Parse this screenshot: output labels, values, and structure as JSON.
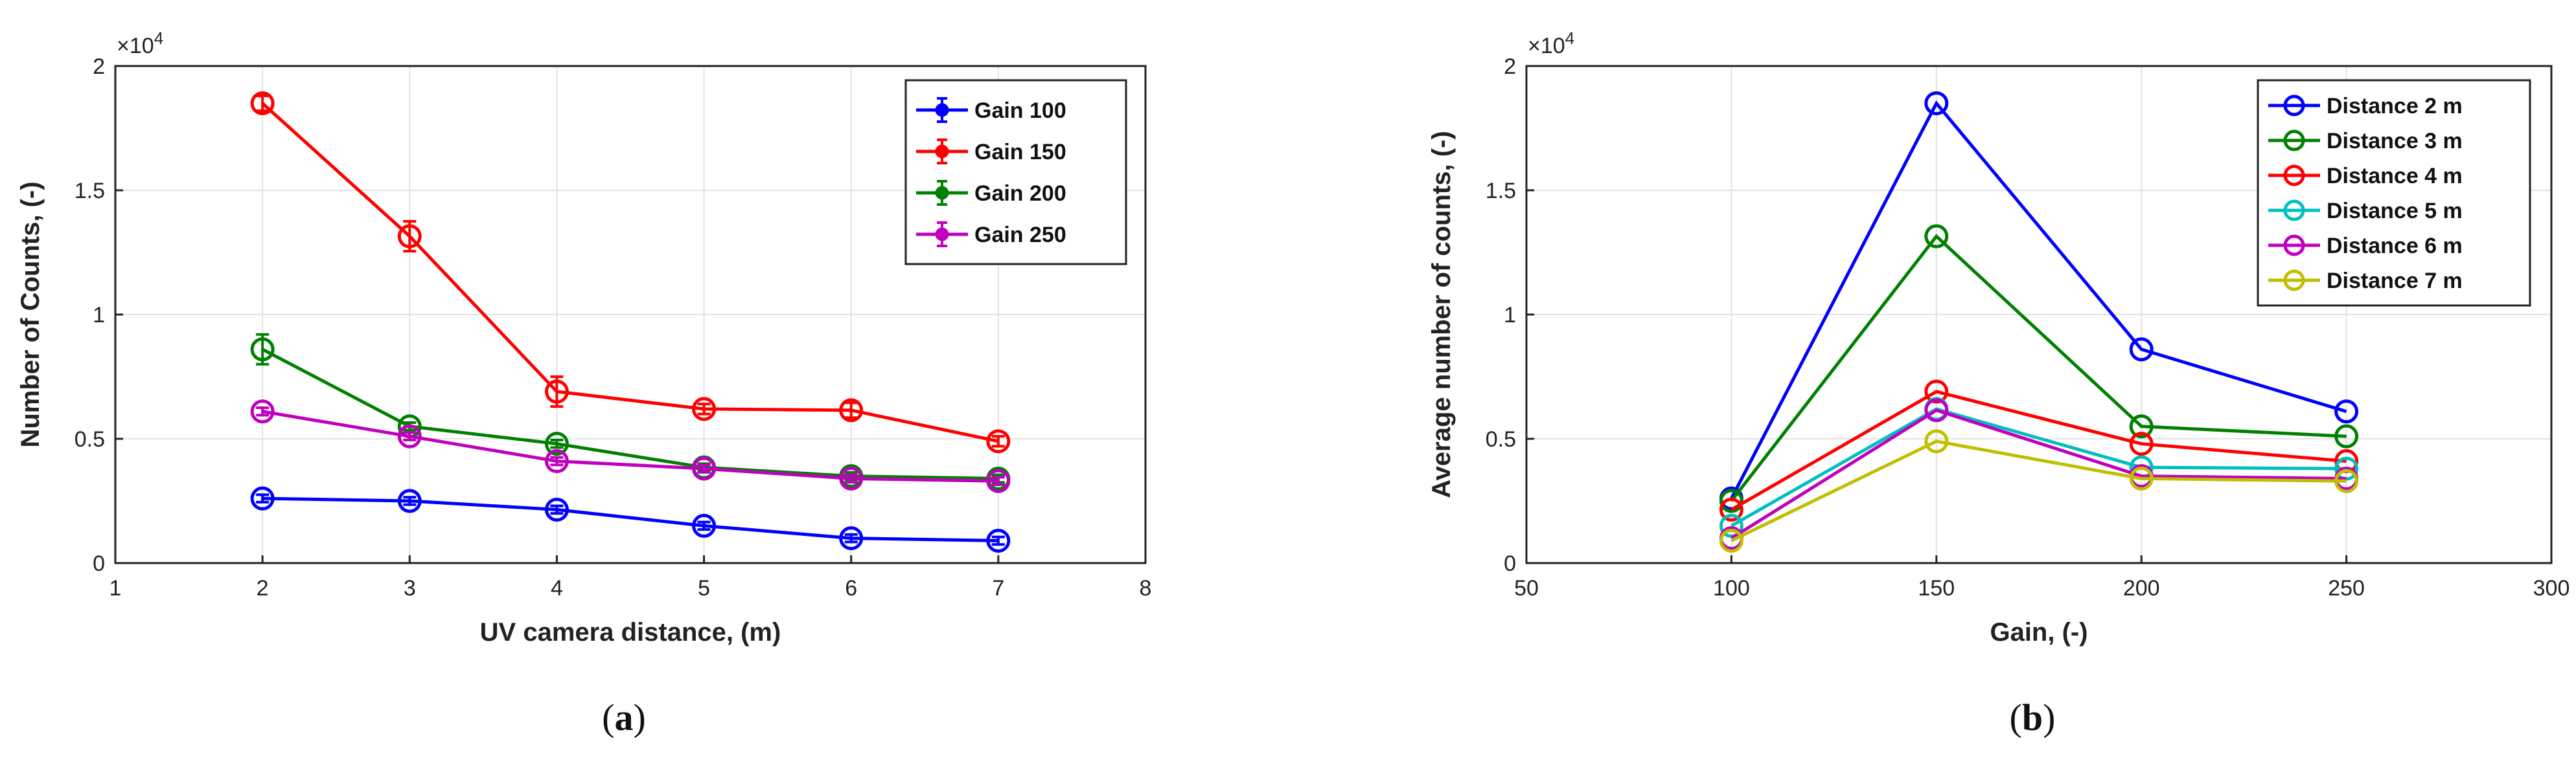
{
  "chart_data": [
    {
      "type": "line",
      "caption_letter": "a",
      "xlabel": "UV camera distance, (m)",
      "ylabel": "Number of Counts, (-)",
      "y_multiplier": "×10",
      "y_multiplier_exp": "4",
      "xlim": [
        1,
        8
      ],
      "ylim": [
        0,
        20000
      ],
      "xticks": [
        1,
        2,
        3,
        4,
        5,
        6,
        7,
        8
      ],
      "yticks": [
        0,
        5000,
        10000,
        15000,
        20000
      ],
      "ytick_labels": [
        "0",
        "0.5",
        "1",
        "1.5",
        "2"
      ],
      "grid": true,
      "legend_position": "top-right",
      "x": [
        2,
        3,
        4,
        5,
        6,
        7
      ],
      "series": [
        {
          "name": "Gain 100",
          "color": "#0000ff",
          "values": [
            2600,
            2500,
            2150,
            1500,
            1000,
            900
          ],
          "errors": [
            150,
            150,
            150,
            150,
            150,
            150
          ]
        },
        {
          "name": "Gain 150",
          "color": "#ff0000",
          "values": [
            18500,
            13150,
            6900,
            6200,
            6150,
            4900
          ],
          "errors": [
            300,
            600,
            600,
            200,
            300,
            200
          ]
        },
        {
          "name": "Gain 200",
          "color": "#008000",
          "values": [
            8600,
            5500,
            4800,
            3850,
            3500,
            3400
          ],
          "errors": [
            600,
            150,
            150,
            150,
            150,
            150
          ]
        },
        {
          "name": "Gain 250",
          "color": "#bf00bf",
          "values": [
            6100,
            5100,
            4100,
            3800,
            3400,
            3300
          ],
          "errors": [
            150,
            150,
            150,
            150,
            150,
            150
          ]
        }
      ]
    },
    {
      "type": "line",
      "caption_letter": "b",
      "xlabel": "Gain, (-)",
      "ylabel": "Average number of counts, (-)",
      "y_multiplier": "×10",
      "y_multiplier_exp": "4",
      "xlim": [
        50,
        300
      ],
      "ylim": [
        0,
        20000
      ],
      "xticks": [
        50,
        100,
        150,
        200,
        250,
        300
      ],
      "yticks": [
        0,
        5000,
        10000,
        15000,
        20000
      ],
      "ytick_labels": [
        "0",
        "0.5",
        "1",
        "1.5",
        "2"
      ],
      "grid": true,
      "legend_position": "top-right",
      "x": [
        100,
        150,
        200,
        250
      ],
      "series": [
        {
          "name": "Distance 2 m",
          "color": "#0000ff",
          "values": [
            2600,
            18500,
            8600,
            6100
          ]
        },
        {
          "name": "Distance 3 m",
          "color": "#008000",
          "values": [
            2500,
            13150,
            5500,
            5100
          ]
        },
        {
          "name": "Distance 4 m",
          "color": "#ff0000",
          "values": [
            2150,
            6900,
            4800,
            4100
          ]
        },
        {
          "name": "Distance 5 m",
          "color": "#00bfbf",
          "values": [
            1500,
            6200,
            3850,
            3800
          ]
        },
        {
          "name": "Distance 6 m",
          "color": "#bf00bf",
          "values": [
            1000,
            6150,
            3500,
            3400
          ]
        },
        {
          "name": "Distance 7 m",
          "color": "#bfbf00",
          "values": [
            900,
            4900,
            3400,
            3300
          ]
        }
      ]
    }
  ]
}
